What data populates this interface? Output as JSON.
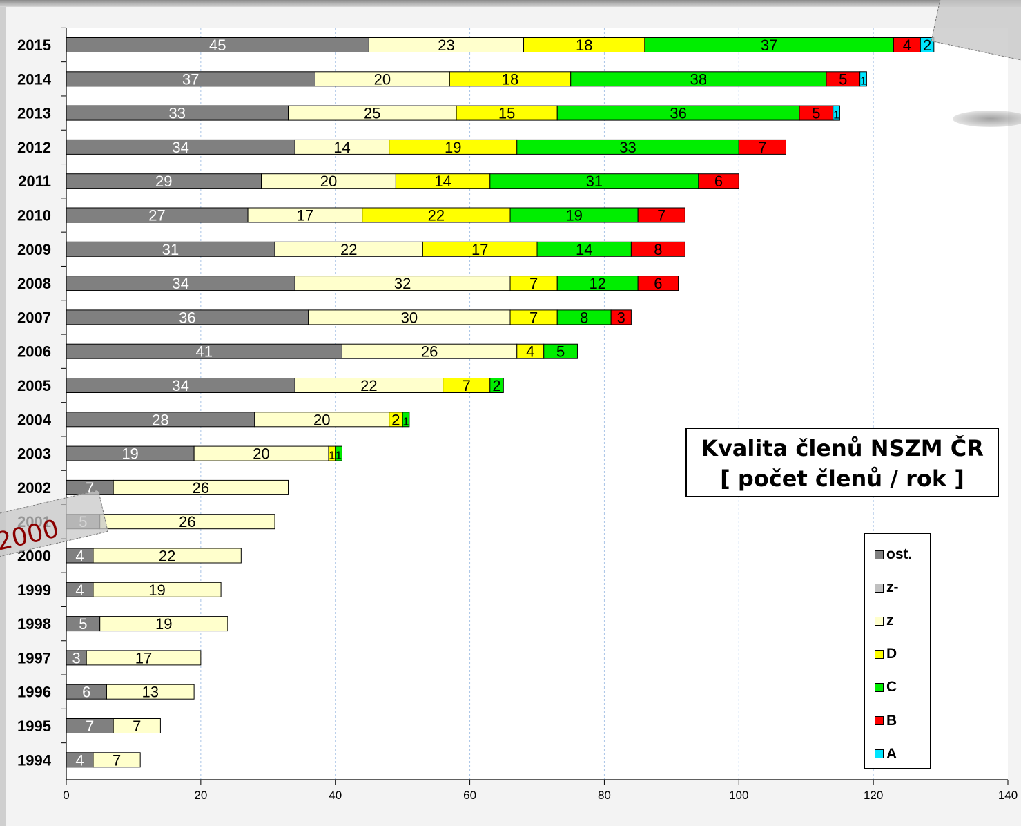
{
  "chart_data": {
    "type": "bar",
    "orientation": "horizontal",
    "stacked": true,
    "title": "Kvalita členů NSZM ČR",
    "subtitle": "[ počet členů / rok ]",
    "categories": [
      "2015",
      "2014",
      "2013",
      "2012",
      "2011",
      "2010",
      "2009",
      "2008",
      "2007",
      "2006",
      "2005",
      "2004",
      "2003",
      "2002",
      "2001",
      "2000",
      "1999",
      "1998",
      "1997",
      "1996",
      "1995",
      "1994"
    ],
    "series": [
      {
        "name": "ost.",
        "color": "#808080",
        "label_color": "#ffffff",
        "values": [
          45,
          37,
          33,
          34,
          29,
          27,
          31,
          34,
          36,
          41,
          34,
          28,
          19,
          7,
          5,
          4,
          4,
          5,
          3,
          6,
          7,
          4
        ]
      },
      {
        "name": "z-",
        "color": "#c0c0c0",
        "label_color": "#000000",
        "values": [
          0,
          0,
          0,
          0,
          0,
          0,
          0,
          0,
          0,
          0,
          0,
          0,
          0,
          0,
          0,
          0,
          0,
          0,
          0,
          0,
          0,
          0
        ]
      },
      {
        "name": "z",
        "color": "#ffffcc",
        "label_color": "#000000",
        "values": [
          23,
          20,
          25,
          14,
          20,
          17,
          22,
          32,
          30,
          26,
          22,
          20,
          20,
          26,
          26,
          22,
          19,
          19,
          17,
          13,
          7,
          7
        ]
      },
      {
        "name": "D",
        "color": "#ffff00",
        "label_color": "#000000",
        "values": [
          18,
          18,
          15,
          19,
          14,
          22,
          17,
          7,
          7,
          4,
          7,
          2,
          1,
          0,
          0,
          0,
          0,
          0,
          0,
          0,
          0,
          0
        ]
      },
      {
        "name": "C",
        "color": "#00ee00",
        "label_color": "#000000",
        "values": [
          37,
          38,
          36,
          33,
          31,
          19,
          14,
          12,
          8,
          5,
          2,
          1,
          1,
          0,
          0,
          0,
          0,
          0,
          0,
          0,
          0,
          0
        ]
      },
      {
        "name": "B",
        "color": "#ff0000",
        "label_color": "#000000",
        "values": [
          4,
          5,
          5,
          7,
          6,
          7,
          8,
          6,
          3,
          0,
          0,
          0,
          0,
          0,
          0,
          0,
          0,
          0,
          0,
          0,
          0,
          0
        ]
      },
      {
        "name": "A",
        "color": "#00e5ff",
        "label_color": "#000000",
        "values": [
          2,
          1,
          1,
          0,
          0,
          0,
          0,
          0,
          0,
          0,
          0,
          0,
          0,
          0,
          0,
          0,
          0,
          0,
          0,
          0,
          0,
          0
        ]
      }
    ],
    "xlim": [
      0,
      140
    ],
    "xticks": [
      "0",
      "20",
      "40",
      "60",
      "80",
      "100",
      "120",
      "140"
    ],
    "grid": "vertical dashed",
    "legend_position": "right"
  },
  "overlay": {
    "sticker_text": "2000"
  },
  "icons": {
    "legend_swatch": "square-swatch"
  }
}
